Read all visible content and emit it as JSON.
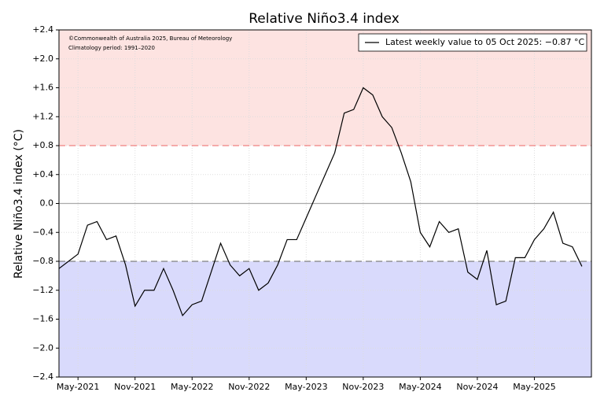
{
  "chart_data": {
    "type": "line",
    "title": "Relative Niño3.4 index",
    "y_label": "Relative Niño3.4 index (°C)",
    "annotations": [
      "©Commonwealth of Australia 2025, Bureau of Meteorology",
      "Climatology period: 1991–2020"
    ],
    "x": [
      "2021-03",
      "2021-04",
      "2021-05",
      "2021-06",
      "2021-07",
      "2021-08",
      "2021-09",
      "2021-10",
      "2021-11",
      "2021-12",
      "2022-01",
      "2022-02",
      "2022-03",
      "2022-04",
      "2022-05",
      "2022-06",
      "2022-07",
      "2022-08",
      "2022-09",
      "2022-10",
      "2022-11",
      "2022-12",
      "2023-01",
      "2023-02",
      "2023-03",
      "2023-04",
      "2023-05",
      "2023-06",
      "2023-07",
      "2023-08",
      "2023-09",
      "2023-10",
      "2023-11",
      "2023-12",
      "2024-01",
      "2024-02",
      "2024-03",
      "2024-04",
      "2024-05",
      "2024-06",
      "2024-07",
      "2024-08",
      "2024-09",
      "2024-10",
      "2024-11",
      "2024-12",
      "2025-01",
      "2025-02",
      "2025-03",
      "2025-04",
      "2025-05",
      "2025-06",
      "2025-07",
      "2025-08",
      "2025-09",
      "2025-10"
    ],
    "series": [
      {
        "name": "Latest weekly value to 05 Oct 2025: −0.87 °C",
        "color": "#000000",
        "values": [
          -0.9,
          -0.8,
          -0.7,
          -0.3,
          -0.25,
          -0.5,
          -0.45,
          -0.85,
          -1.42,
          -1.2,
          -1.2,
          -0.9,
          -1.2,
          -1.55,
          -1.4,
          -1.35,
          -0.95,
          -0.55,
          -0.85,
          -1.0,
          -0.9,
          -1.2,
          -1.1,
          -0.85,
          -0.5,
          -0.5,
          -0.2,
          0.1,
          0.4,
          0.7,
          1.25,
          1.3,
          1.6,
          1.5,
          1.2,
          1.05,
          0.7,
          0.3,
          -0.4,
          -0.6,
          -0.25,
          -0.4,
          -0.35,
          -0.95,
          -1.05,
          -0.65,
          -1.4,
          -1.35,
          -0.75,
          -0.75,
          -0.5,
          -0.35,
          -0.12,
          -0.55,
          -0.6,
          -0.87
        ]
      }
    ],
    "xlim": [
      "2021-03",
      "2025-11"
    ],
    "xticks": [
      {
        "value": "2021-05",
        "label": "May-2021"
      },
      {
        "value": "2021-11",
        "label": "Nov-2021"
      },
      {
        "value": "2022-05",
        "label": "May-2022"
      },
      {
        "value": "2022-11",
        "label": "Nov-2022"
      },
      {
        "value": "2023-05",
        "label": "May-2023"
      },
      {
        "value": "2023-11",
        "label": "Nov-2023"
      },
      {
        "value": "2024-05",
        "label": "May-2024"
      },
      {
        "value": "2024-11",
        "label": "Nov-2024"
      },
      {
        "value": "2025-05",
        "label": "May-2025"
      }
    ],
    "ylim": [
      -2.4,
      2.4
    ],
    "yticks": [
      {
        "value": -2.4,
        "label": "−2.4"
      },
      {
        "value": -2.0,
        "label": "−2.0"
      },
      {
        "value": -1.6,
        "label": "−1.6"
      },
      {
        "value": -1.2,
        "label": "−1.2"
      },
      {
        "value": -0.8,
        "label": "−0.8"
      },
      {
        "value": -0.4,
        "label": "−0.4"
      },
      {
        "value": 0,
        "label": "0.0"
      },
      {
        "value": 0.4,
        "label": "+0.4"
      },
      {
        "value": 0.8,
        "label": "+0.8"
      },
      {
        "value": 1.2,
        "label": "+1.2"
      },
      {
        "value": 1.6,
        "label": "+1.6"
      },
      {
        "value": 2.0,
        "label": "+2.0"
      },
      {
        "value": 2.4,
        "label": "+2.4"
      }
    ],
    "el_nino_threshold": 0.8,
    "el_nino_color": "#fde3e1",
    "el_nino_line_color": "#f08080",
    "la_nina_threshold": -0.8,
    "la_nina_color": "#d9dafc",
    "la_nina_line_color": "#808080",
    "grid": true,
    "legend": "upper right"
  }
}
